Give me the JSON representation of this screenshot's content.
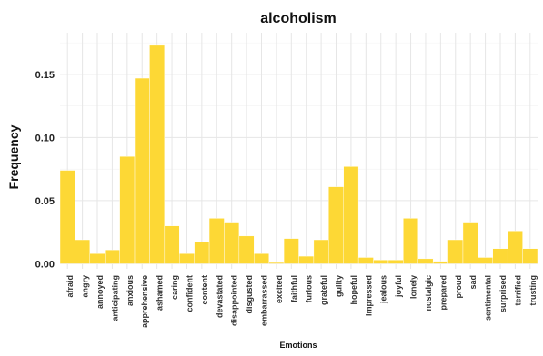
{
  "chart_data": {
    "type": "bar",
    "title": "alcoholism",
    "xlabel": "Emotions",
    "ylabel": "Frequency",
    "ylim": [
      -0.004,
      0.183
    ],
    "yticks": [
      0.0,
      0.05,
      0.1,
      0.15
    ],
    "ytick_labels": [
      "0.00",
      "0.05",
      "0.10",
      "0.15"
    ],
    "grid": true,
    "bar_color": "#FDD835",
    "categories": [
      "afraid",
      "angry",
      "annoyed",
      "anticipating",
      "anxious",
      "apprehensive",
      "ashamed",
      "caring",
      "confident",
      "content",
      "devastated",
      "disappointed",
      "disgusted",
      "embarrassed",
      "excited",
      "faithful",
      "furious",
      "grateful",
      "guilty",
      "hopeful",
      "impressed",
      "jealous",
      "joyful",
      "lonely",
      "nostalgic",
      "prepared",
      "proud",
      "sad",
      "sentimental",
      "surprised",
      "terrified",
      "trusting"
    ],
    "values": [
      0.074,
      0.019,
      0.008,
      0.011,
      0.085,
      0.147,
      0.173,
      0.03,
      0.008,
      0.017,
      0.036,
      0.033,
      0.022,
      0.008,
      0.001,
      0.02,
      0.006,
      0.019,
      0.061,
      0.077,
      0.005,
      0.003,
      0.003,
      0.036,
      0.004,
      0.002,
      0.019,
      0.033,
      0.005,
      0.012,
      0.026,
      0.012
    ]
  }
}
